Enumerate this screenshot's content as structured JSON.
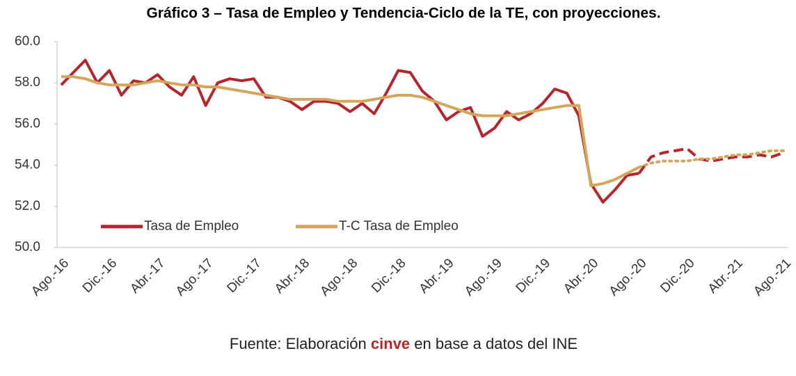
{
  "chart_data": {
    "type": "line",
    "title": "Gráfico 3 – Tasa de Empleo y Tendencia-Ciclo de la TE, con proyecciones.",
    "source": {
      "prefix": "Fuente: Elaboración ",
      "highlight": "cinve",
      "suffix": " en base a datos del INE"
    },
    "categories": [
      "Ago.-16",
      null,
      null,
      null,
      "Dic.-16",
      null,
      null,
      null,
      "Abr.-17",
      null,
      null,
      null,
      "Ago.-17",
      null,
      null,
      null,
      "Dic.-17",
      null,
      null,
      null,
      "Abr.-18",
      null,
      null,
      null,
      "Ago.-18",
      null,
      null,
      null,
      "Dic.-18",
      null,
      null,
      null,
      "Abr.-19",
      null,
      null,
      null,
      "Ago.-19",
      null,
      null,
      null,
      "Dic.-19",
      null,
      null,
      null,
      "Abr.-20",
      null,
      null,
      null,
      "Ago.-20",
      null,
      null,
      null,
      "Dic.-20",
      null,
      null,
      null,
      "Abr.-21",
      null,
      null,
      null,
      "Ago.-21"
    ],
    "series": [
      {
        "name": "Tasa de Empleo",
        "color": "#b5262c",
        "projected_style": "dashed",
        "values": [
          57.9,
          58.5,
          59.1,
          58.0,
          58.6,
          57.4,
          58.1,
          58.0,
          58.4,
          57.8,
          57.4,
          58.3,
          56.9,
          58.0,
          58.2,
          58.1,
          58.2,
          57.3,
          57.3,
          57.1,
          56.7,
          57.1,
          57.1,
          57.0,
          56.6,
          57.0,
          56.5,
          57.5,
          58.6,
          58.5,
          57.6,
          57.1,
          56.2,
          56.6,
          56.8,
          55.4,
          55.8,
          56.6,
          56.2,
          56.5,
          57.0,
          57.7,
          57.5,
          56.4,
          53.1,
          52.2,
          52.8,
          53.5,
          53.6,
          null,
          null,
          null,
          null,
          null,
          null,
          null,
          null,
          null,
          null,
          null,
          null
        ],
        "projected_values": [
          null,
          null,
          null,
          null,
          null,
          null,
          null,
          null,
          null,
          null,
          null,
          null,
          null,
          null,
          null,
          null,
          null,
          null,
          null,
          null,
          null,
          null,
          null,
          null,
          null,
          null,
          null,
          null,
          null,
          null,
          null,
          null,
          null,
          null,
          null,
          null,
          null,
          null,
          null,
          null,
          null,
          null,
          null,
          null,
          null,
          null,
          null,
          null,
          53.6,
          54.4,
          54.6,
          54.7,
          54.8,
          54.3,
          54.2,
          54.3,
          54.4,
          54.4,
          54.5,
          54.4,
          54.6
        ]
      },
      {
        "name": "T-C Tasa de Empleo",
        "color": "#d4a55a",
        "projected_style": "dotted",
        "values": [
          58.3,
          58.3,
          58.2,
          58.0,
          57.9,
          57.9,
          57.9,
          58.0,
          58.1,
          58.0,
          57.9,
          57.9,
          57.8,
          57.8,
          57.7,
          57.6,
          57.5,
          57.4,
          57.3,
          57.2,
          57.2,
          57.2,
          57.2,
          57.1,
          57.1,
          57.1,
          57.2,
          57.3,
          57.4,
          57.4,
          57.3,
          57.1,
          56.9,
          56.7,
          56.5,
          56.4,
          56.4,
          56.4,
          56.5,
          56.6,
          56.7,
          56.8,
          56.9,
          56.9,
          53.0,
          53.1,
          53.3,
          53.6,
          53.9,
          null,
          null,
          null,
          null,
          null,
          null,
          null,
          null,
          null,
          null,
          null,
          null
        ],
        "projected_values": [
          null,
          null,
          null,
          null,
          null,
          null,
          null,
          null,
          null,
          null,
          null,
          null,
          null,
          null,
          null,
          null,
          null,
          null,
          null,
          null,
          null,
          null,
          null,
          null,
          null,
          null,
          null,
          null,
          null,
          null,
          null,
          null,
          null,
          null,
          null,
          null,
          null,
          null,
          null,
          null,
          null,
          null,
          null,
          null,
          null,
          null,
          null,
          null,
          53.9,
          54.1,
          54.2,
          54.2,
          54.2,
          54.3,
          54.3,
          54.4,
          54.5,
          54.5,
          54.6,
          54.7,
          54.7
        ]
      }
    ],
    "ylim": [
      50,
      60
    ],
    "yticks": [
      {
        "value": 50,
        "label": "50.0"
      },
      {
        "value": 52,
        "label": "52.0"
      },
      {
        "value": 54,
        "label": "54.0"
      },
      {
        "value": 56,
        "label": "56.0"
      },
      {
        "value": 58,
        "label": "58.0"
      },
      {
        "value": 60,
        "label": "60.0"
      }
    ],
    "grid": false,
    "legend": "lower left"
  }
}
